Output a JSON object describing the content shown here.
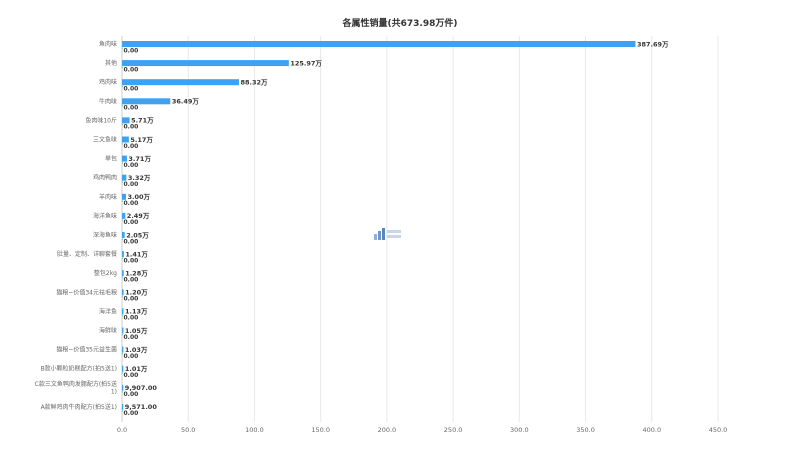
{
  "chart_data": {
    "type": "bar",
    "orientation": "horizontal",
    "title": "各属性销量(共673.98万件)",
    "xlabel": "",
    "ylabel": "",
    "xlim": [
      0,
      450
    ],
    "grid": true,
    "x_ticks": [
      "0.0",
      "50.0",
      "100.0",
      "150.0",
      "200.0",
      "250.0",
      "300.0",
      "350.0",
      "400.0",
      "450.0"
    ],
    "categories": [
      "鱼肉味",
      "其他",
      "鸡肉味",
      "牛肉味",
      "鱼肉味10斤",
      "三文鱼味",
      "单包",
      "鸡肉鸭肉",
      "羊肉味",
      "海洋鱼味",
      "深海鱼味",
      "肚量、定制、详聊套餐",
      "整包2kg",
      "猫粮~价值34元祛毛粮",
      "海洋鱼",
      "海鲜味",
      "猫粮~价值35元益生菌",
      "B款小颗粒奶糕配方(拍5送1)",
      "C款三文鱼鸭肉发腮配方(拍5送1)",
      "A款鲜鸡肉牛肉配方(拍5送1)"
    ],
    "series": [
      {
        "values": [
          387.69,
          125.97,
          88.32,
          36.49,
          5.71,
          5.17,
          3.71,
          3.32,
          3.0,
          2.49,
          2.05,
          1.41,
          1.28,
          1.2,
          1.13,
          1.05,
          1.03,
          1.01,
          0.9907,
          0.9571
        ],
        "labels": [
          "387.69万",
          "125.97万",
          "88.32万",
          "36.49万",
          "5.71万",
          "5.17万",
          "3.71万",
          "3.32万",
          "3.00万",
          "2.49万",
          "2.05万",
          "1.41万",
          "1.28万",
          "1.20万",
          "1.13万",
          "1.05万",
          "1.03万",
          "1.01万",
          "9,907.00",
          "9,571.00"
        ],
        "color": "#3fa1f2"
      },
      {
        "values": [
          0,
          0,
          0,
          0,
          0,
          0,
          0,
          0,
          0,
          0,
          0,
          0,
          0,
          0,
          0,
          0,
          0,
          0,
          0,
          0
        ],
        "labels": [
          "0.00",
          "0.00",
          "0.00",
          "0.00",
          "0.00",
          "0.00",
          "0.00",
          "0.00",
          "0.00",
          "0.00",
          "0.00",
          "0.00",
          "0.00",
          "0.00",
          "0.00",
          "0.00",
          "0.00",
          "0.00",
          "0.00",
          "0.00"
        ],
        "color": "#7ed3a0"
      }
    ]
  },
  "colors": {
    "bar": "#3fa1f2",
    "grid": "#e8e8e8",
    "text": "#666666",
    "title": "#333333"
  }
}
